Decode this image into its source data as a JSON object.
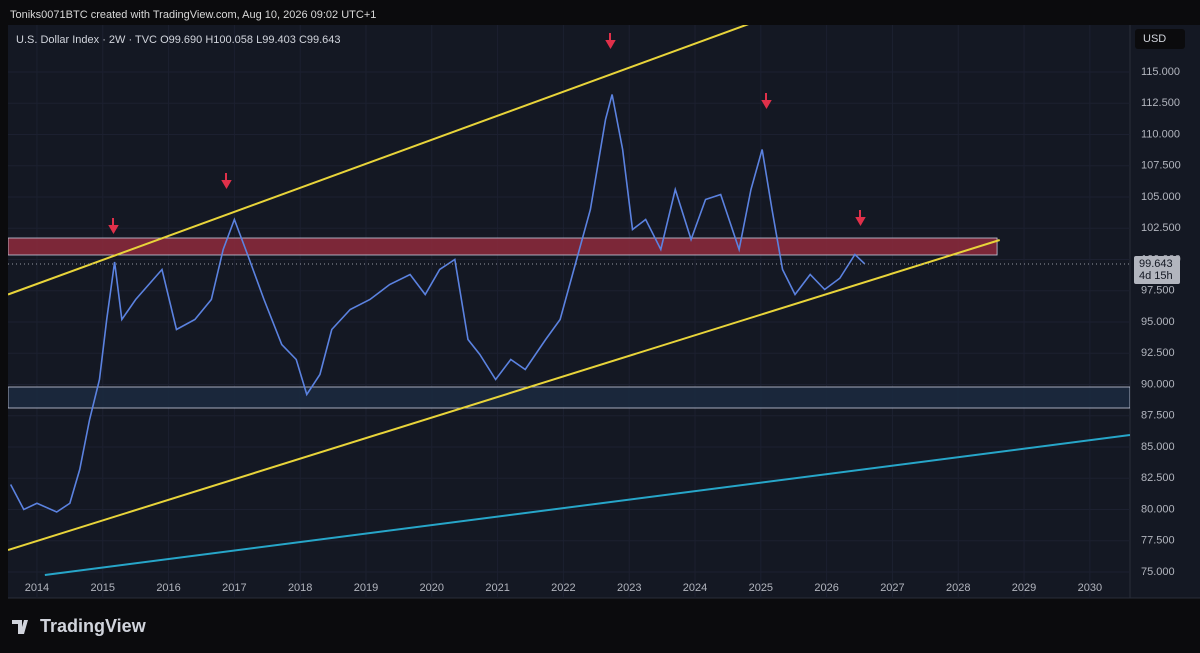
{
  "header": "Toniks0071BTC created with TradingView.com, Aug 10, 2026 09:02 UTC+1",
  "footer": "TradingView",
  "chart_data": {
    "type": "line",
    "legend": [
      "U.S. Dollar Index · 2W · TVC",
      "O99.690",
      "H100.058",
      "L99.403",
      "C99.643"
    ],
    "currency": "USD",
    "last_price": 99.643,
    "countdown": "4d 15h",
    "color": "#5b82e0",
    "x": [
      2013.6,
      2013.8,
      2014.0,
      2014.3,
      2014.5,
      2014.65,
      2014.8,
      2014.95,
      2015.06,
      2015.18,
      2015.29,
      2015.5,
      2015.9,
      2016.12,
      2016.4,
      2016.65,
      2016.83,
      2017.0,
      2017.2,
      2017.45,
      2017.72,
      2017.94,
      2018.1,
      2018.3,
      2018.48,
      2018.76,
      2019.06,
      2019.36,
      2019.67,
      2019.9,
      2020.12,
      2020.35,
      2020.55,
      2020.73,
      2020.97,
      2021.2,
      2021.42,
      2021.73,
      2021.95,
      2022.18,
      2022.41,
      2022.64,
      2022.74,
      2022.9,
      2023.05,
      2023.25,
      2023.48,
      2023.7,
      2023.94,
      2024.16,
      2024.39,
      2024.67,
      2024.85,
      2025.02,
      2025.17,
      2025.33,
      2025.52,
      2025.75,
      2025.97,
      2026.2,
      2026.43,
      2026.58
    ],
    "values": [
      82,
      80,
      80.5,
      79.8,
      80.5,
      83.2,
      87.2,
      90.4,
      95.2,
      99.8,
      95.2,
      96.8,
      99.2,
      94.4,
      95.2,
      96.8,
      100.8,
      103.2,
      100.4,
      96.8,
      93.2,
      92,
      89.2,
      90.8,
      94.4,
      96,
      96.8,
      98,
      98.8,
      97.2,
      99.2,
      100,
      93.6,
      92.4,
      90.4,
      92,
      91.2,
      93.6,
      95.2,
      99.6,
      104,
      111.2,
      113.2,
      108.8,
      102.4,
      103.2,
      100.8,
      105.6,
      101.6,
      104.8,
      105.2,
      100.8,
      105.6,
      108.8,
      104,
      99.2,
      97.2,
      98.8,
      97.6,
      98.5,
      100.4,
      99.643
    ],
    "trendlines": [
      {
        "color": "#e8d43a",
        "x": [
          2013.56,
          2024.9
        ],
        "y": [
          97.2,
          119.0
        ]
      },
      {
        "color": "#e8d43a",
        "x": [
          2013.56,
          2028.63
        ],
        "y": [
          76.76,
          101.56
        ]
      },
      {
        "color": "#27a6c9",
        "x": [
          2014.12,
          2030.61
        ],
        "y": [
          74.76,
          85.96
        ]
      }
    ],
    "zones": [
      {
        "color": "#8e2a3c",
        "x": [
          2013.56,
          2028.59
        ],
        "y": [
          100.36,
          101.72
        ]
      },
      {
        "color": "#1b2a40",
        "x": [
          2013.56,
          2030.61
        ],
        "y": [
          88.12,
          89.8
        ]
      }
    ],
    "xlim": [
      2013.56,
      2030.61
    ],
    "ylim": [
      72.92,
      118.76
    ],
    "xticks": [
      2014,
      2015,
      2016,
      2017,
      2018,
      2019,
      2020,
      2021,
      2022,
      2023,
      2024,
      2025,
      2026,
      2027,
      2028,
      2029,
      2030
    ],
    "yticks": [
      {
        "value": 75,
        "label": "75.000"
      },
      {
        "value": 77.5,
        "label": "77.500"
      },
      {
        "value": 80,
        "label": "80.000"
      },
      {
        "value": 82.5,
        "label": "82.500"
      },
      {
        "value": 85,
        "label": "85.000"
      },
      {
        "value": 87.5,
        "label": "87.500"
      },
      {
        "value": 90,
        "label": "90.000"
      },
      {
        "value": 92.5,
        "label": "92.500"
      },
      {
        "value": 95,
        "label": "95.000"
      },
      {
        "value": 97.5,
        "label": "97.500"
      },
      {
        "value": 100,
        "label": "100.000"
      },
      {
        "value": 102.5,
        "label": "102.500"
      },
      {
        "value": 105,
        "label": "105.000"
      },
      {
        "value": 107.5,
        "label": "107.500"
      },
      {
        "value": 110,
        "label": "110.000"
      },
      {
        "value": 112.5,
        "label": "112.500"
      },
      {
        "value": 115,
        "label": "115.000"
      }
    ]
  }
}
